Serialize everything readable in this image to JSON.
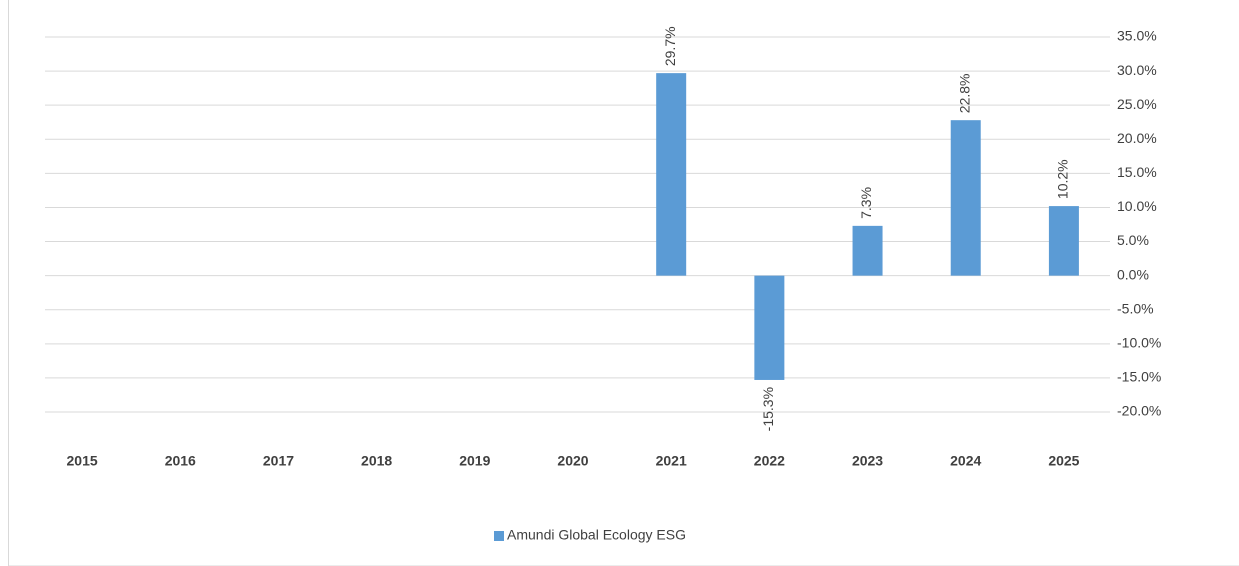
{
  "chart_data": {
    "type": "bar",
    "categories": [
      "2015",
      "2016",
      "2017",
      "2018",
      "2019",
      "2020",
      "2021",
      "2022",
      "2023",
      "2024",
      "2025"
    ],
    "series": [
      {
        "name": "Amundi Global Ecology ESG",
        "color": "#5b9bd5",
        "values": [
          null,
          null,
          null,
          null,
          null,
          null,
          29.7,
          -15.3,
          7.3,
          22.8,
          10.2
        ],
        "value_labels": [
          null,
          null,
          null,
          null,
          null,
          null,
          "29.7%",
          "-15.3%",
          "7.3%",
          "22.8%",
          "10.2%"
        ]
      }
    ],
    "ylim": [
      -20,
      35
    ],
    "yticks": [
      {
        "value": -20,
        "label": "-20.0%"
      },
      {
        "value": -15,
        "label": "-15.0%"
      },
      {
        "value": -10,
        "label": "-10.0%"
      },
      {
        "value": -5,
        "label": "-5.0%"
      },
      {
        "value": 0,
        "label": "0.0%"
      },
      {
        "value": 5,
        "label": "5.0%"
      },
      {
        "value": 10,
        "label": "10.0%"
      },
      {
        "value": 15,
        "label": "15.0%"
      },
      {
        "value": 20,
        "label": "20.0%"
      },
      {
        "value": 25,
        "label": "25.0%"
      },
      {
        "value": 30,
        "label": "30.0%"
      },
      {
        "value": 35,
        "label": "35.0%"
      }
    ],
    "y_axis_side": "right",
    "grid": true,
    "legend": "bottom"
  }
}
